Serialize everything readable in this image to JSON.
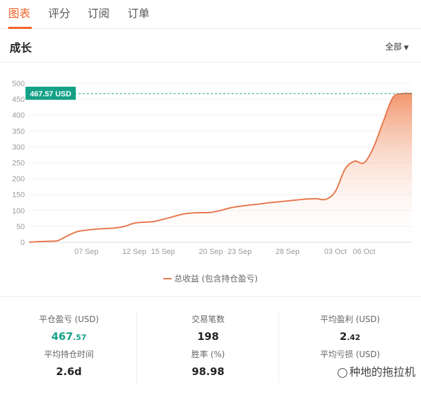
{
  "tabs": [
    {
      "label": "图表",
      "active": true
    },
    {
      "label": "评分",
      "active": false
    },
    {
      "label": "订阅",
      "active": false
    },
    {
      "label": "订单",
      "active": false
    }
  ],
  "section_title": "成长",
  "filter": {
    "label": "全部"
  },
  "colors": {
    "accent": "#f2632b",
    "line": "#e8784e",
    "badge": "#14a187",
    "green": "#14a187"
  },
  "chart_data": {
    "type": "area",
    "y_ticks": [
      "500",
      "450",
      "400",
      "350",
      "300",
      "250",
      "200",
      "150",
      "100",
      "50",
      "0"
    ],
    "x_ticks": [
      "07 Sep",
      "12 Sep",
      "15 Sep",
      "20 Sep",
      "23 Sep",
      "28 Sep",
      "03 Oct",
      "06 Oct"
    ],
    "ylim": [
      0,
      500
    ],
    "current_value_label": "467.57 USD",
    "current_value": 467.57,
    "legend": "总收益 (包含持仓盈亏)",
    "series": [
      {
        "name": "总收益 (包含持仓盈亏)",
        "points": [
          [
            "01 Sep",
            0
          ],
          [
            "02 Sep",
            2
          ],
          [
            "03 Sep",
            3
          ],
          [
            "04 Sep",
            5
          ],
          [
            "05 Sep",
            20
          ],
          [
            "06 Sep",
            33
          ],
          [
            "07 Sep",
            38
          ],
          [
            "08 Sep",
            41
          ],
          [
            "09 Sep",
            43
          ],
          [
            "10 Sep",
            45
          ],
          [
            "11 Sep",
            50
          ],
          [
            "12 Sep",
            60
          ],
          [
            "13 Sep",
            63
          ],
          [
            "14 Sep",
            65
          ],
          [
            "15 Sep",
            72
          ],
          [
            "16 Sep",
            80
          ],
          [
            "17 Sep",
            88
          ],
          [
            "18 Sep",
            92
          ],
          [
            "19 Sep",
            93
          ],
          [
            "20 Sep",
            94
          ],
          [
            "21 Sep",
            100
          ],
          [
            "22 Sep",
            108
          ],
          [
            "23 Sep",
            113
          ],
          [
            "24 Sep",
            117
          ],
          [
            "25 Sep",
            120
          ],
          [
            "26 Sep",
            124
          ],
          [
            "27 Sep",
            127
          ],
          [
            "28 Sep",
            130
          ],
          [
            "29 Sep",
            133
          ],
          [
            "30 Sep",
            136
          ],
          [
            "01 Oct",
            137
          ],
          [
            "02 Oct",
            135
          ],
          [
            "03 Oct",
            160
          ],
          [
            "04 Oct",
            230
          ],
          [
            "05 Oct",
            255
          ],
          [
            "06 Oct",
            250
          ],
          [
            "07 Oct",
            300
          ],
          [
            "08 Oct",
            380
          ],
          [
            "09 Oct",
            455
          ],
          [
            "10 Oct",
            467.57
          ],
          [
            "11 Oct",
            467.57
          ]
        ]
      }
    ]
  },
  "stats": {
    "closed_pnl_label": "平仓盈亏 (USD)",
    "closed_pnl_int": "467",
    "closed_pnl_dec": ".57",
    "trades_label": "交易笔数",
    "trades_value": "198",
    "avg_profit_label": "平均盈利 (USD)",
    "avg_profit_int": "2",
    "avg_profit_dec": ".42",
    "avg_hold_label": "平均持仓时间",
    "avg_hold_value": "2.6d",
    "winrate_label": "胜率 (%)",
    "winrate_value": "98.98",
    "avg_loss_label": "平均亏损 (USD)"
  },
  "watermark": "种地的拖拉机"
}
